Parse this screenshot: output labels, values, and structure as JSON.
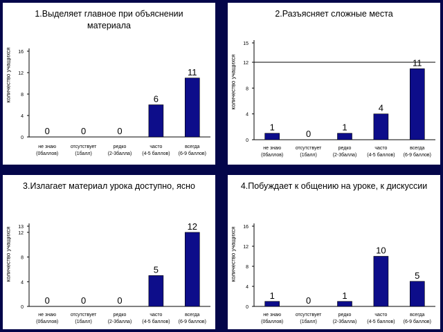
{
  "chart_data": [
    {
      "type": "bar",
      "title": "1.Выделяет главное при объяснении материала",
      "ylabel": "количество учащихся",
      "categories": [
        "не знаю (0баллов)",
        "отсутствует (1балл)",
        "редко (2-3балла)",
        "часто (4-5 баллов)",
        "всегда (6-9 баллов)"
      ],
      "values": [
        0,
        0,
        0,
        6,
        11
      ],
      "yticks": [
        0,
        4,
        8,
        12,
        16
      ],
      "ylim": [
        0,
        16
      ],
      "grid": false,
      "bar_color": "#0d0d8a"
    },
    {
      "type": "bar",
      "title": "2.Разъясняет сложные места",
      "ylabel": "количество учащихся",
      "categories": [
        "не знаю (0баллов)",
        "отсутствует (1балл)",
        "редко (2-3балла)",
        "часто (4-5 баллов)",
        "всегда (6-9 баллов)"
      ],
      "values": [
        1,
        0,
        1,
        4,
        11
      ],
      "yticks": [
        0,
        4,
        8,
        12,
        15
      ],
      "ylim": [
        0,
        15
      ],
      "grid": false,
      "reference_line": 12,
      "bar_color": "#0d0d8a"
    },
    {
      "type": "bar",
      "title": "3.Излагает материал урока доступно, ясно",
      "ylabel": "количество учащихся",
      "categories": [
        "не знаю (0баллов)",
        "отсутствует (1балл)",
        "редко (2-3балла)",
        "часто (4-5 баллов)",
        "всегда (6-9 баллов)"
      ],
      "values": [
        0,
        0,
        0,
        5,
        12
      ],
      "yticks": [
        0,
        4,
        8,
        12,
        13
      ],
      "ylim": [
        0,
        13
      ],
      "grid": false,
      "bar_color": "#0d0d8a"
    },
    {
      "type": "bar",
      "title": "4.Побуждает к общению на уроке, к дискуссии",
      "ylabel": "количество учащихся",
      "categories": [
        "не знаю (0баллов)",
        "отсутствует (1балл)",
        "редко (2-3балла)",
        "часто (4-5 баллов)",
        "всегда (6-9 баллов)"
      ],
      "values": [
        1,
        0,
        1,
        10,
        5
      ],
      "yticks": [
        0,
        4,
        8,
        12,
        16
      ],
      "ylim": [
        0,
        16
      ],
      "grid": false,
      "bar_color": "#0d0d8a"
    }
  ]
}
